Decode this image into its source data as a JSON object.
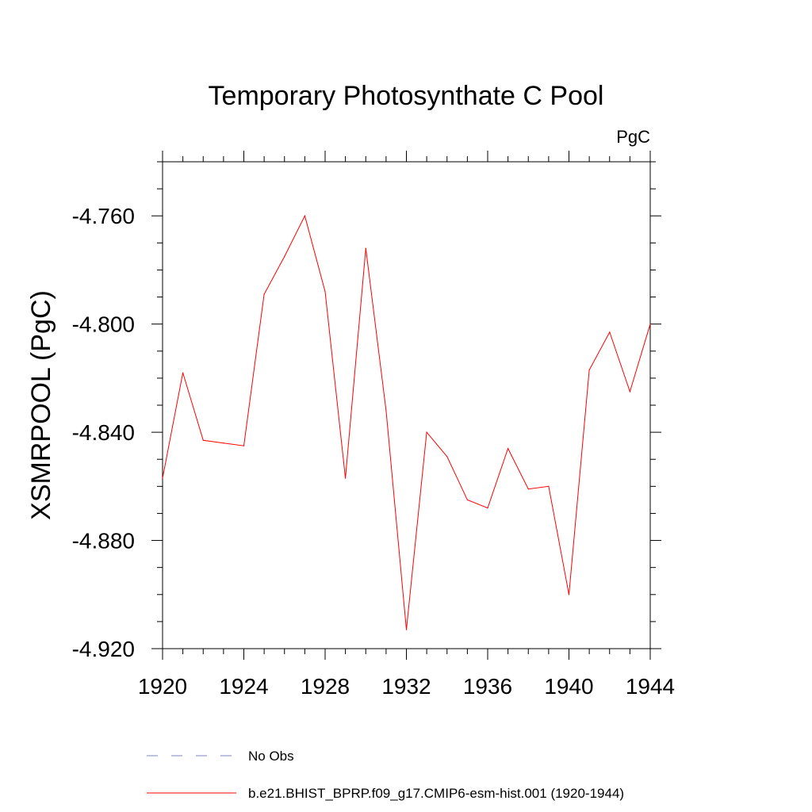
{
  "chart_data": {
    "type": "line",
    "title": "Temporary Photosynthate C Pool",
    "units_label": "PgC",
    "ylabel": "XSMRPOOL  (PgC)",
    "xlabel": "",
    "xlim": [
      1920,
      1944
    ],
    "ylim": [
      -4.92,
      -4.74
    ],
    "x_ticks": [
      1920,
      1924,
      1928,
      1932,
      1936,
      1940,
      1944
    ],
    "x_tick_labels": [
      "1920",
      "1924",
      "1928",
      "1932",
      "1936",
      "1940",
      "1944"
    ],
    "y_ticks": [
      -4.92,
      -4.88,
      -4.84,
      -4.8,
      -4.76
    ],
    "y_tick_labels": [
      "-4.920",
      "-4.880",
      "-4.840",
      "-4.800",
      "-4.760"
    ],
    "x_minor_step": 1,
    "y_minor_step": 0.01,
    "grid": false,
    "legend_position": "bottom-left",
    "series": [
      {
        "name": "b.e21.BHIST_BPRP.f09_g17.CMIP6-esm-hist.001 (1920-1944)",
        "color": "#ff0000",
        "style": "solid",
        "x": [
          1920,
          1921,
          1922,
          1923,
          1924,
          1925,
          1926,
          1927,
          1928,
          1929,
          1930,
          1931,
          1932,
          1933,
          1934,
          1935,
          1936,
          1937,
          1938,
          1939,
          1940,
          1941,
          1942,
          1943,
          1944
        ],
        "values": [
          -4.857,
          -4.818,
          -4.843,
          -4.844,
          -4.845,
          -4.789,
          -4.775,
          -4.76,
          -4.788,
          -4.857,
          -4.772,
          -4.832,
          -4.913,
          -4.84,
          -4.849,
          -4.865,
          -4.868,
          -4.846,
          -4.861,
          -4.86,
          -4.9,
          -4.817,
          -4.803,
          -4.825,
          -4.8
        ]
      }
    ],
    "legend": [
      {
        "label": "No Obs",
        "color": "#8080c0",
        "style": "dashed"
      },
      {
        "label": "b.e21.BHIST_BPRP.f09_g17.CMIP6-esm-hist.001 (1920-1944)",
        "color": "#ff0000",
        "style": "solid"
      }
    ]
  }
}
